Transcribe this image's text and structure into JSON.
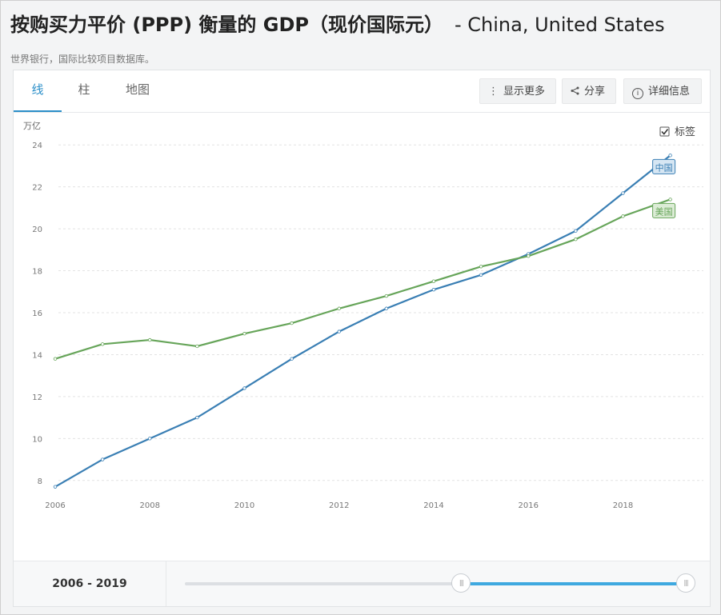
{
  "header": {
    "title": "按购买力平价 (PPP) 衡量的 GDP（现价国际元）",
    "countries": "- China, United States",
    "source": "世界银行，国际比较项目数据库。"
  },
  "tabs": [
    {
      "label": "线",
      "active": true
    },
    {
      "label": "柱",
      "active": false
    },
    {
      "label": "地图",
      "active": false
    }
  ],
  "toolbar": {
    "more_label": "显示更多",
    "share_label": "分享",
    "details_label": "详细信息"
  },
  "labels_toggle": {
    "label": "标签",
    "checked": true
  },
  "range": {
    "label": "2006 - 2019",
    "start": 2006,
    "end": 2019,
    "min": 1990,
    "max": 2019
  },
  "colors": {
    "china": "#3a7fb4",
    "us": "#67a55a",
    "accent": "#2b8fc9"
  },
  "chart_data": {
    "type": "line",
    "ylabel": "万亿",
    "x": [
      2006,
      2007,
      2008,
      2009,
      2010,
      2011,
      2012,
      2013,
      2014,
      2015,
      2016,
      2017,
      2018,
      2019
    ],
    "xticks": [
      2006,
      2008,
      2010,
      2012,
      2014,
      2016,
      2018
    ],
    "yticks": [
      8,
      10,
      12,
      14,
      16,
      18,
      20,
      22,
      24
    ],
    "ylim": [
      7,
      25
    ],
    "xlim": [
      2006,
      2019.7
    ],
    "grid": true,
    "series": [
      {
        "name": "中国",
        "color": "#3a7fb4",
        "values": [
          7.7,
          9.0,
          10.0,
          11.0,
          12.4,
          13.8,
          15.1,
          16.2,
          17.1,
          17.8,
          18.8,
          19.9,
          21.7,
          23.5
        ]
      },
      {
        "name": "美国",
        "color": "#67a55a",
        "values": [
          13.8,
          14.5,
          14.7,
          14.4,
          15.0,
          15.5,
          16.2,
          16.8,
          17.5,
          18.2,
          18.7,
          19.5,
          20.6,
          21.4
        ]
      }
    ]
  }
}
